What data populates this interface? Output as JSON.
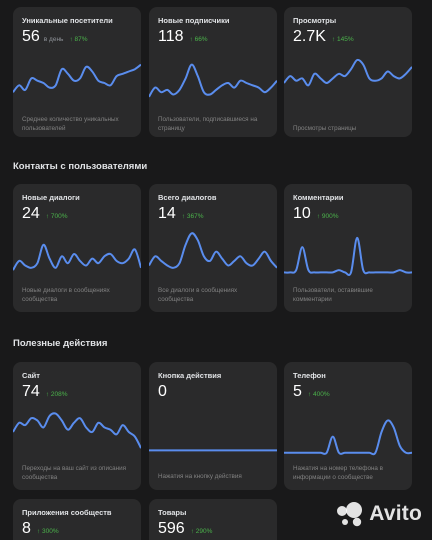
{
  "colors": {
    "background": "#19191a",
    "card": "#2a2a2b",
    "line": "#5a8dee",
    "positive": "#4bb34b",
    "muted": "#828282"
  },
  "sections": {
    "contacts_title": "Контакты с пользователями",
    "actions_title": "Полезные действия"
  },
  "cards": [
    {
      "title": "Уникальные посетители",
      "value": "56",
      "unit": "в день",
      "delta": "87%",
      "desc": "Среднее количество уникальных пользователей",
      "series": [
        6,
        9,
        7,
        12,
        11,
        10,
        8,
        9,
        16,
        14,
        11,
        12,
        17,
        15,
        11,
        10,
        9,
        13,
        14,
        15,
        16,
        18
      ]
    },
    {
      "title": "Новые подписчики",
      "value": "118",
      "unit": "",
      "delta": "66%",
      "desc": "Пользователи, подписавшиеся на страницу",
      "series": [
        4,
        8,
        6,
        7,
        5,
        7,
        12,
        18,
        13,
        6,
        5,
        7,
        9,
        10,
        8,
        11,
        10,
        9,
        8,
        6,
        8,
        11
      ]
    },
    {
      "title": "Просмотры",
      "value": "2.7K",
      "unit": "",
      "delta": "145%",
      "desc": "Просмотры страницы",
      "series": [
        10,
        13,
        11,
        12,
        9,
        14,
        12,
        10,
        12,
        14,
        13,
        16,
        20,
        18,
        12,
        11,
        12,
        15,
        13,
        12,
        14,
        17
      ]
    },
    {
      "title": "Новые диалоги",
      "value": "24",
      "unit": "",
      "delta": "700%",
      "desc": "Новые диалоги в сообщениях сообщества",
      "series": [
        3,
        7,
        5,
        4,
        6,
        14,
        8,
        4,
        9,
        6,
        10,
        7,
        5,
        8,
        6,
        9,
        10,
        7,
        6,
        8,
        12,
        4
      ]
    },
    {
      "title": "Всего диалогов",
      "value": "14",
      "unit": "",
      "delta": "367%",
      "desc": "Все диалоги в сообщениях сообщества",
      "series": [
        5,
        9,
        7,
        5,
        4,
        6,
        14,
        19,
        16,
        9,
        7,
        11,
        8,
        5,
        7,
        9,
        6,
        5,
        8,
        11,
        7,
        4
      ]
    },
    {
      "title": "Комментарии",
      "value": "10",
      "unit": "",
      "delta": "900%",
      "desc": "Пользователи, оставившие комментарии",
      "series": [
        2,
        2,
        3,
        13,
        3,
        2,
        2,
        2,
        2,
        3,
        2,
        2,
        17,
        3,
        2,
        2,
        2,
        2,
        2,
        3,
        2,
        2
      ]
    },
    {
      "title": "Сайт",
      "value": "74",
      "unit": "",
      "delta": "208%",
      "desc": "Переходы на ваш сайт из описания сообщества",
      "series": [
        10,
        14,
        13,
        16,
        15,
        12,
        17,
        18,
        15,
        11,
        14,
        16,
        12,
        10,
        14,
        12,
        11,
        9,
        13,
        10,
        8,
        3
      ]
    },
    {
      "title": "Кнопка действия",
      "value": "0",
      "unit": "",
      "delta": "",
      "desc": "Нажатия на кнопку действия",
      "series": [
        2,
        2,
        2,
        2,
        2,
        2,
        2,
        2,
        2,
        2,
        2,
        2,
        2,
        2,
        2,
        2,
        2,
        2,
        2,
        2,
        2,
        2
      ]
    },
    {
      "title": "Телефон",
      "value": "5",
      "unit": "",
      "delta": "400%",
      "desc": "Нажатия на номер телефона в информации о сообществе",
      "series": [
        1,
        1,
        1,
        1,
        1,
        1,
        1,
        1,
        8,
        1,
        1,
        1,
        1,
        1,
        1,
        1,
        10,
        15,
        12,
        4,
        1,
        1
      ]
    },
    {
      "title": "Приложения сообществ",
      "value": "8",
      "unit": "",
      "delta": "300%",
      "desc": "",
      "series": []
    },
    {
      "title": "Товары",
      "value": "596",
      "unit": "",
      "delta": "290%",
      "desc": "",
      "series": []
    }
  ],
  "watermark": {
    "text": "Avito"
  }
}
